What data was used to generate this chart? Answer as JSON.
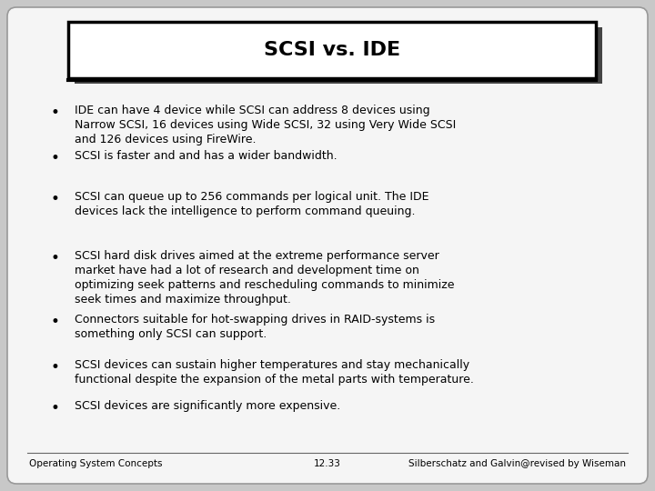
{
  "title": "SCSI vs. IDE",
  "background_color": "#c8c8c8",
  "slide_bg": "#f5f5f5",
  "bullets": [
    "IDE can have 4 device while SCSI can address 8 devices using\nNarrow SCSI, 16 devices using Wide SCSI, 32 using Very Wide SCSI\nand 126 devices using FireWire.",
    "SCSI is faster and and has a wider bandwidth.",
    "SCSI can queue up to 256 commands per logical unit. The IDE\ndevices lack the intelligence to perform command queuing.",
    "SCSI hard disk drives aimed at the extreme performance server\nmarket have had a lot of research and development time on\noptimizing seek patterns and rescheduling commands to minimize\nseek times and maximize throughput.",
    "Connectors suitable for hot-swapping drives in RAID-systems is\nsomething only SCSI can support.",
    "SCSI devices can sustain higher temperatures and stay mechanically\nfunctional despite the expansion of the metal parts with temperature.",
    "SCSI devices are significantly more expensive."
  ],
  "footer_left": "Operating System Concepts",
  "footer_center": "12.33",
  "footer_right": "Silberschatz and Galvin@revised by Wiseman",
  "title_fontsize": 16,
  "bullet_fontsize": 9,
  "footer_fontsize": 7.5
}
